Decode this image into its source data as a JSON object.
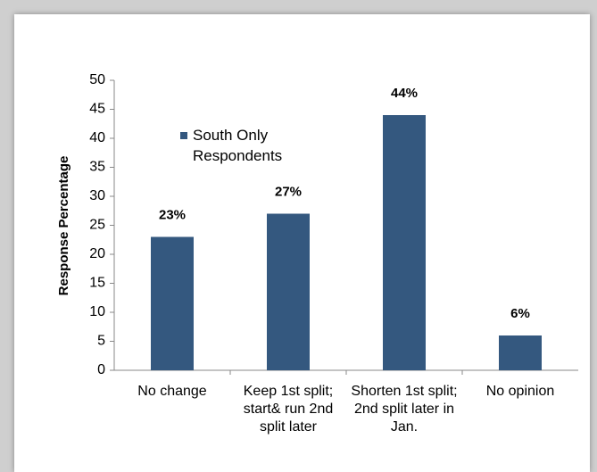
{
  "chart_data": {
    "type": "bar",
    "ylabel": "Response Percentage",
    "categories": [
      "No change",
      "Keep 1st split; start& run 2nd split later",
      "Shorten 1st split; 2nd split later in Jan.",
      "No opinion"
    ],
    "series": [
      {
        "name": "South Only Respondents",
        "color": "#34587f",
        "values": [
          23,
          27,
          44,
          6
        ],
        "value_labels": [
          "23%",
          "27%",
          "44%",
          "6%"
        ]
      }
    ],
    "ylim": [
      0,
      50
    ],
    "yticks": [
      0,
      5,
      10,
      15,
      20,
      25,
      30,
      35,
      40,
      45,
      50
    ],
    "legend": "upper left",
    "grid": false
  }
}
